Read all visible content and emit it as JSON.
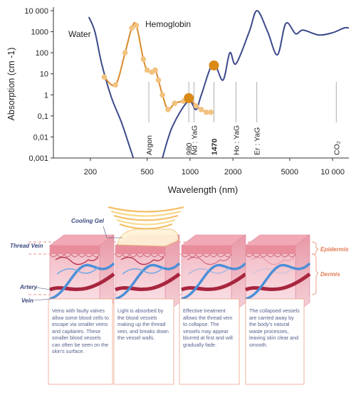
{
  "chart_data": {
    "type": "line",
    "y_label": "Absorption (cm -1)",
    "x_label": "Wavelength (nm)",
    "log_x": true,
    "log_y": true,
    "xlim": [
      110,
      13000
    ],
    "ylim": [
      0.001,
      10000
    ],
    "xticks": [
      200,
      500,
      1000,
      2000,
      5000,
      {
        "value": 10000,
        "label": "10 000"
      }
    ],
    "yticks": [
      {
        "value": 0.001,
        "label": "0,001"
      },
      {
        "value": 0.01,
        "label": "0,01"
      },
      {
        "value": 0.1,
        "label": "0,1"
      },
      1,
      10,
      100,
      1000,
      {
        "value": 10000,
        "label": "10 000"
      }
    ],
    "series": [
      {
        "name": "Water",
        "color": "#3d4a8c",
        "x": [
          195,
          215,
          240,
          280,
          330,
          370,
          400,
          500,
          640,
          750,
          970,
          1100,
          1200,
          1450,
          1700,
          1900,
          2100,
          2600,
          2950,
          3500,
          4100,
          4700,
          5500,
          6200,
          8000,
          10000,
          12000,
          13000
        ],
        "values": [
          5000,
          1000,
          30,
          0.8,
          0.05,
          0.005,
          0.001,
          null,
          0.001,
          0.03,
          0.5,
          0.2,
          1,
          30,
          5,
          100,
          30,
          1000,
          10000,
          1000,
          80,
          2500,
          800,
          1200,
          700,
          900,
          1500,
          1500
        ]
      },
      {
        "name": "Hemoglobin",
        "color": "#d98a2b",
        "marker_color": "#f2c27f",
        "x": [
          250,
          300,
          350,
          390,
          420,
          470,
          500,
          540,
          570,
          600,
          640,
          700,
          780,
          900,
          1000,
          1100,
          1200,
          1300,
          1400
        ],
        "values": [
          7,
          3,
          100,
          1500,
          2000,
          50,
          15,
          12,
          15,
          5,
          1,
          0.2,
          0.4,
          0.5,
          0.6,
          0.3,
          0.2,
          0.15,
          0.15
        ]
      }
    ],
    "highlights": {
      "x": [
        980,
        1470
      ],
      "values": [
        0.7,
        25
      ],
      "color": "#d98a16"
    },
    "lasers": [
      {
        "label": "Argon",
        "x": 514
      },
      {
        "label": "980",
        "x": 980
      },
      {
        "label": "Nd : YaG",
        "x": 1064
      },
      {
        "label": "1470",
        "x": 1470,
        "bold": true
      },
      {
        "label": "Ho : YaG",
        "x": 2100
      },
      {
        "label": "Er : YaG",
        "x": 2940
      },
      {
        "label": "CO₂",
        "x": 10600
      }
    ]
  },
  "illustration": {
    "labels": {
      "cooling_gel": "Cooling Gel",
      "thread_vein": "Thread Vein",
      "artery": "Artery",
      "vein": "Vein",
      "epidermis": "Epidermis",
      "dermis": "Dermis"
    },
    "steps": [
      "Veins with faulty valves allow some blood cells to escape via smaller veins and capilaries. These smaller blood vessels can often be seen on the skin's surface.",
      "Light is absorbed by the blood vessels making up the thread vein, and breaks down the vessel walls.",
      "Effective treatment allows the thread vein to collapse. The vessels may appear blurred at first and will gradually fade.",
      "The collapsed vessels are carried away by the body's natural waste processes, leaving skin clear and smooth."
    ]
  }
}
